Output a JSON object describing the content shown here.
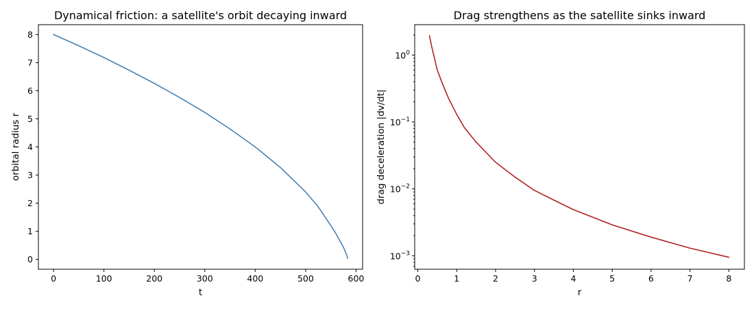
{
  "chart_data": [
    {
      "type": "line",
      "title": "Dynamical friction: a satellite's orbit decaying inward",
      "xlabel": "t",
      "ylabel": "orbital radius r",
      "xlim": [
        -30,
        613
      ],
      "ylim": [
        -0.35,
        8.35
      ],
      "x_ticks": [
        0,
        100,
        200,
        300,
        400,
        500,
        600
      ],
      "y_ticks": [
        0,
        1,
        2,
        3,
        4,
        5,
        6,
        7,
        8
      ],
      "x_tick_labels": [
        "0",
        "100",
        "200",
        "300",
        "400",
        "500",
        "600"
      ],
      "y_tick_labels": [
        "0",
        "1",
        "2",
        "3",
        "4",
        "5",
        "6",
        "7",
        "8"
      ],
      "yscale": "linear",
      "grid": false,
      "series": [
        {
          "color": "#4682b4",
          "x": [
            0,
            50,
            100,
            150,
            200,
            250,
            300,
            350,
            400,
            450,
            500,
            525,
            550,
            560,
            570,
            575,
            580,
            582,
            583.5
          ],
          "y": [
            8.0,
            7.6,
            7.18,
            6.73,
            6.26,
            5.76,
            5.23,
            4.64,
            4.0,
            3.27,
            2.4,
            1.87,
            1.2,
            0.92,
            0.59,
            0.43,
            0.22,
            0.12,
            0.04
          ]
        }
      ]
    },
    {
      "type": "line",
      "title": "Drag strengthens as the satellite sinks inward",
      "xlabel": "r",
      "ylabel": "drag deceleration |dv/dt|",
      "xlim": [
        -0.08,
        8.4
      ],
      "ylim": [
        0.00063,
        2.85
      ],
      "x_ticks": [
        0,
        1,
        2,
        3,
        4,
        5,
        6,
        7,
        8
      ],
      "y_ticks": [
        0.001,
        0.01,
        0.1,
        1
      ],
      "x_tick_labels": [
        "0",
        "1",
        "2",
        "3",
        "4",
        "5",
        "6",
        "7",
        "8"
      ],
      "y_tick_labels": [
        {
          "base": "10",
          "exp": "−3"
        },
        {
          "base": "10",
          "exp": "−2"
        },
        {
          "base": "10",
          "exp": "−1"
        },
        {
          "base": "10",
          "exp": "0"
        }
      ],
      "yscale": "log",
      "grid": false,
      "series": [
        {
          "color": "#b22222",
          "x": [
            0.3,
            0.35,
            0.4,
            0.5,
            0.6,
            0.7,
            0.8,
            1.0,
            1.2,
            1.5,
            2.0,
            2.5,
            3.0,
            3.5,
            4.0,
            5.0,
            6.0,
            7.0,
            8.0
          ],
          "y": [
            1.95,
            1.4,
            1.05,
            0.6,
            0.42,
            0.3,
            0.22,
            0.13,
            0.082,
            0.05,
            0.025,
            0.015,
            0.0095,
            0.0068,
            0.0049,
            0.0029,
            0.0019,
            0.0013,
            0.00095
          ]
        }
      ]
    }
  ]
}
